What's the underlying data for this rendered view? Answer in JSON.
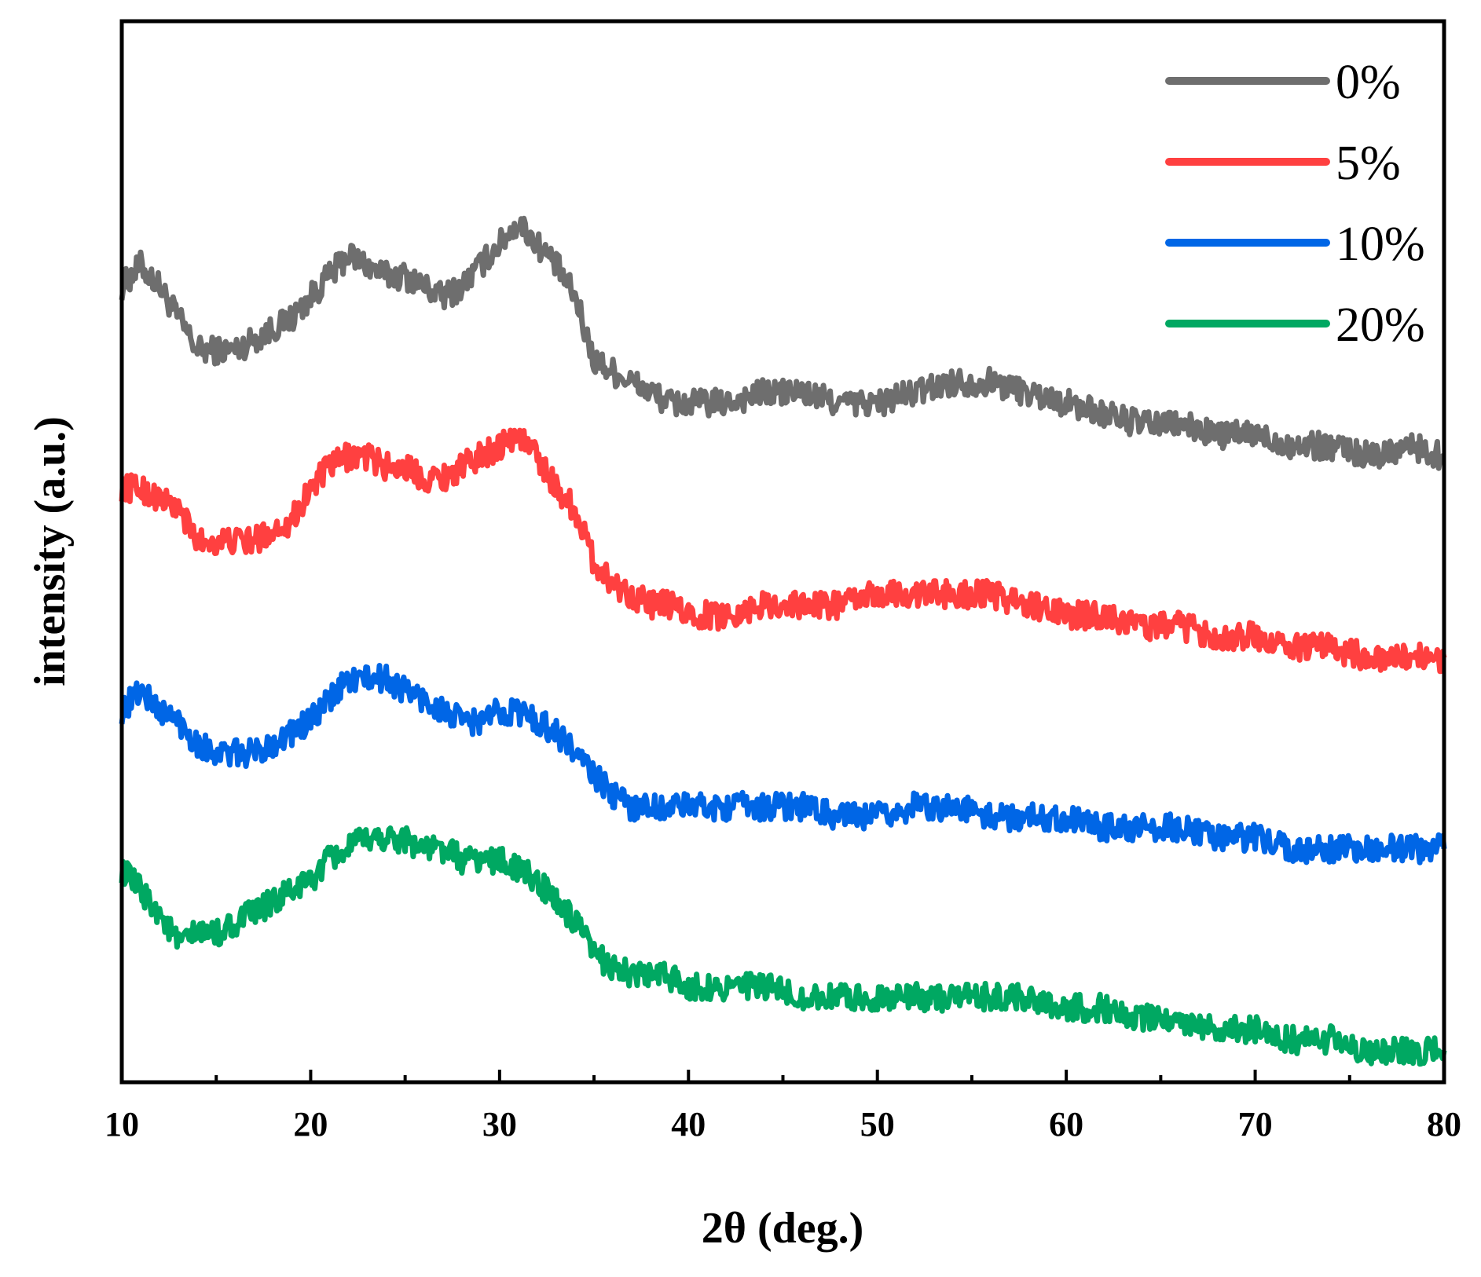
{
  "chart_data": {
    "type": "line",
    "title": "",
    "xlabel": "2θ (deg.)",
    "ylabel": "intensity (a.u.)",
    "xlim": [
      10,
      80
    ],
    "ylim": [
      0,
      100
    ],
    "y_ticks_shown": false,
    "grid": false,
    "legend_position": "top-right",
    "x_ticks": [
      10,
      20,
      30,
      40,
      50,
      60,
      70,
      80
    ],
    "x_tick_labels": [
      "10",
      "20",
      "30",
      "40",
      "50",
      "60",
      "70",
      "80"
    ],
    "x": [
      10,
      11,
      12,
      13,
      14,
      15,
      16,
      17,
      18,
      19,
      20,
      21,
      22,
      23,
      24,
      25,
      26,
      27,
      28,
      29,
      30,
      31,
      32,
      33,
      34,
      35,
      36,
      37,
      38,
      39,
      40,
      42,
      44,
      46,
      48,
      50,
      52,
      54,
      56,
      58,
      60,
      62,
      64,
      66,
      68,
      70,
      72,
      74,
      76,
      78,
      80
    ],
    "series": [
      {
        "name": "0%",
        "color": "#6e6e6e",
        "values": [
          75,
          77,
          75,
          72,
          69,
          69,
          69,
          70,
          71,
          72,
          74,
          76,
          78,
          77,
          76,
          76,
          75,
          74,
          75,
          77,
          79,
          81,
          79,
          77,
          74,
          68,
          67,
          66,
          65,
          64,
          64,
          64,
          65,
          65,
          64,
          64,
          65,
          66,
          66,
          65,
          64,
          63,
          62,
          62,
          61,
          61,
          60,
          60,
          59,
          60,
          59
        ]
      },
      {
        "name": "5%",
        "color": "#ff4040",
        "values": [
          56,
          56,
          55,
          54,
          51,
          51,
          51,
          51,
          52,
          53,
          56,
          58,
          59,
          59,
          58,
          58,
          57,
          57,
          58,
          59,
          60,
          61,
          59,
          56,
          54,
          49,
          47,
          46,
          45,
          45,
          44,
          44,
          45,
          45,
          45,
          46,
          46,
          46,
          46,
          45,
          44,
          44,
          43,
          43,
          42,
          42,
          41,
          41,
          40,
          40,
          40
        ]
      },
      {
        "name": "10%",
        "color": "#0066e6",
        "values": [
          35,
          37,
          35,
          34,
          32,
          31,
          31,
          31,
          32,
          33,
          34,
          36,
          38,
          38,
          38,
          37,
          36,
          35,
          34,
          34,
          35,
          35,
          34,
          33,
          31,
          29,
          27,
          26,
          26,
          26,
          26,
          26,
          26,
          26,
          25,
          25,
          26,
          26,
          25,
          25,
          25,
          24,
          24,
          24,
          23,
          23,
          22,
          22,
          22,
          22,
          22
        ]
      },
      {
        "name": "20%",
        "color": "#00a862",
        "values": [
          20,
          18,
          16,
          13,
          14,
          14,
          15,
          16,
          17,
          18,
          19,
          21,
          22,
          23,
          23,
          23,
          22,
          22,
          21,
          21,
          21,
          20,
          19,
          17,
          15,
          12,
          11,
          10,
          10,
          10,
          9,
          9,
          9,
          8,
          8,
          8,
          8,
          8,
          8,
          8,
          7,
          7,
          6,
          6,
          5,
          5,
          4,
          4,
          3,
          3,
          3
        ]
      }
    ]
  }
}
